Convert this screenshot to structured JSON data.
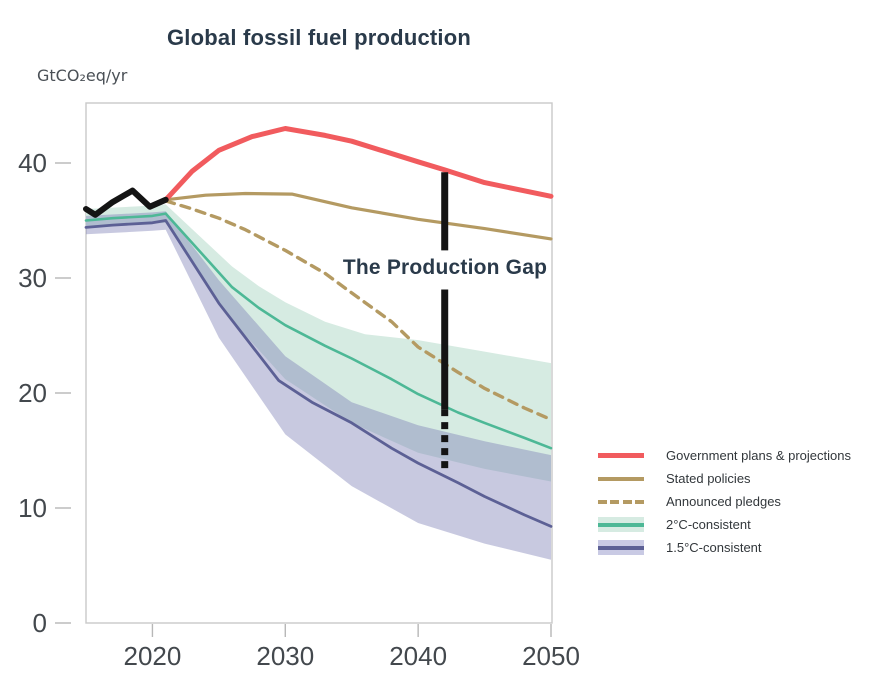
{
  "header": {
    "title": "Global fossil fuel production",
    "unit_label": "GtCO₂eq/yr"
  },
  "annotation": {
    "label": "The Production Gap"
  },
  "colors": {
    "government_plans": "#f15b5e",
    "stated_policies": "#b49a62",
    "announced_pledges": "#b49a62",
    "two_degree_line": "#4db896",
    "two_degree_band": "#d6ebe2",
    "one_five_degree_line": "#5c6095",
    "one_five_degree_band": "#c9cae4",
    "historical": "#141414",
    "axis_border": "#c9c9c9",
    "tick_text": "#43484d",
    "title_text": "#2a3a4a"
  },
  "legend": {
    "items": [
      {
        "id": "government-plans",
        "label": "Government plans & projections",
        "type": "thick-line",
        "color": "#f15b5e"
      },
      {
        "id": "stated-policies",
        "label": "Stated policies",
        "type": "line",
        "color": "#b49a62"
      },
      {
        "id": "announced-pledges",
        "label": "Announced pledges",
        "type": "dashed",
        "color": "#b49a62"
      },
      {
        "id": "two-degree",
        "label": "2°C-consistent",
        "type": "band",
        "color": "#4db896",
        "band_color": "#d6ebe2"
      },
      {
        "id": "one-five-degree",
        "label": "1.5°C-consistent",
        "type": "band",
        "color": "#5c6095",
        "band_color": "#c9cae4"
      }
    ]
  },
  "chart_data": {
    "type": "line",
    "title": "Global fossil fuel production",
    "xlabel": "",
    "ylabel": "GtCO₂eq/yr",
    "xlim": [
      2015,
      2050.2
    ],
    "ylim": [
      0,
      45.2
    ],
    "x_ticks": [
      2020,
      2030,
      2040,
      2050
    ],
    "y_ticks": [
      0,
      10,
      20,
      30,
      40
    ],
    "grid": false,
    "legend_position": "right",
    "bands": [
      {
        "id": "band-2c",
        "name": "2°C-consistent range",
        "fill": "#d6ebe2",
        "opacity": 1,
        "top": [
          [
            2015,
            36.0
          ],
          [
            2020,
            36.3
          ],
          [
            2021,
            36.4
          ],
          [
            2026,
            31.0
          ],
          [
            2028,
            29.3
          ],
          [
            2030,
            27.9
          ],
          [
            2033,
            26.2
          ],
          [
            2036,
            25.1
          ],
          [
            2040,
            24.6
          ],
          [
            2045,
            23.6
          ],
          [
            2050,
            22.6
          ]
        ],
        "bottom": [
          [
            2015,
            34.4
          ],
          [
            2020,
            34.7
          ],
          [
            2021,
            34.8
          ],
          [
            2026,
            26.3
          ],
          [
            2030,
            21.2
          ],
          [
            2035,
            17.4
          ],
          [
            2040,
            14.8
          ],
          [
            2045,
            13.4
          ],
          [
            2050,
            12.3
          ]
        ]
      },
      {
        "id": "band-15c",
        "name": "1.5°C-consistent range",
        "fill": "rgba(124,127,182,0.42)",
        "opacity": 1,
        "top": [
          [
            2015,
            35.4
          ],
          [
            2020,
            35.7
          ],
          [
            2021,
            35.8
          ],
          [
            2025,
            29.8
          ],
          [
            2030,
            23.2
          ],
          [
            2035,
            19.2
          ],
          [
            2040,
            17.2
          ],
          [
            2045,
            15.8
          ],
          [
            2050,
            14.6
          ]
        ],
        "bottom": [
          [
            2015,
            33.8
          ],
          [
            2020,
            34.1
          ],
          [
            2021,
            34.2
          ],
          [
            2025,
            24.8
          ],
          [
            2030,
            16.4
          ],
          [
            2035,
            11.9
          ],
          [
            2040,
            8.7
          ],
          [
            2045,
            6.9
          ],
          [
            2050,
            5.5
          ]
        ]
      }
    ],
    "series": [
      {
        "id": "line-2c",
        "name": "2°C-consistent",
        "color": "#4db896",
        "width": 2.6,
        "points": [
          [
            2015,
            35.0
          ],
          [
            2017,
            35.2
          ],
          [
            2020,
            35.4
          ],
          [
            2021,
            35.6
          ],
          [
            2026,
            29.2
          ],
          [
            2028,
            27.4
          ],
          [
            2030,
            25.9
          ],
          [
            2033,
            24.1
          ],
          [
            2035,
            23.0
          ],
          [
            2038,
            21.2
          ],
          [
            2040,
            19.9
          ],
          [
            2043,
            18.3
          ],
          [
            2045,
            17.4
          ],
          [
            2048,
            16.1
          ],
          [
            2050,
            15.2
          ]
        ]
      },
      {
        "id": "line-15c",
        "name": "1.5°C-consistent",
        "color": "#5c6095",
        "width": 2.8,
        "points": [
          [
            2015,
            34.4
          ],
          [
            2017,
            34.6
          ],
          [
            2020,
            34.8
          ],
          [
            2021,
            35.0
          ],
          [
            2025,
            27.8
          ],
          [
            2029.5,
            21.1
          ],
          [
            2032,
            19.2
          ],
          [
            2035,
            17.4
          ],
          [
            2038,
            15.2
          ],
          [
            2040,
            13.9
          ],
          [
            2043,
            12.2
          ],
          [
            2045,
            11.0
          ],
          [
            2048,
            9.4
          ],
          [
            2050,
            8.4
          ]
        ]
      },
      {
        "id": "line-pledges",
        "name": "Announced pledges",
        "color": "#b49a62",
        "width": 3.4,
        "dash": "9 7",
        "points": [
          [
            2021,
            36.7
          ],
          [
            2023,
            36.0
          ],
          [
            2025,
            35.2
          ],
          [
            2027,
            34.2
          ],
          [
            2030,
            32.4
          ],
          [
            2033,
            30.4
          ],
          [
            2035,
            28.7
          ],
          [
            2038,
            26.2
          ],
          [
            2040,
            24.0
          ],
          [
            2043,
            21.8
          ],
          [
            2045,
            20.4
          ],
          [
            2048,
            18.7
          ],
          [
            2050,
            17.7
          ]
        ]
      },
      {
        "id": "line-stated",
        "name": "Stated policies",
        "color": "#b49a62",
        "width": 3.2,
        "points": [
          [
            2021,
            36.8
          ],
          [
            2024,
            37.2
          ],
          [
            2027,
            37.35
          ],
          [
            2030.5,
            37.3
          ],
          [
            2035,
            36.1
          ],
          [
            2040,
            35.1
          ],
          [
            2045,
            34.3
          ],
          [
            2050,
            33.4
          ]
        ]
      },
      {
        "id": "line-govt",
        "name": "Government plans & projections",
        "color": "#f15b5e",
        "width": 5,
        "points": [
          [
            2021,
            36.8
          ],
          [
            2023,
            39.3
          ],
          [
            2025,
            41.1
          ],
          [
            2027.5,
            42.3
          ],
          [
            2030,
            43.0
          ],
          [
            2033,
            42.4
          ],
          [
            2035,
            41.9
          ],
          [
            2040,
            40.1
          ],
          [
            2042,
            39.4
          ],
          [
            2045,
            38.3
          ],
          [
            2050,
            37.1
          ]
        ]
      },
      {
        "id": "line-history",
        "name": "Historical production",
        "color": "#141414",
        "width": 6,
        "points": [
          [
            2015,
            36.0
          ],
          [
            2015.7,
            35.5
          ],
          [
            2017,
            36.6
          ],
          [
            2018.5,
            37.6
          ],
          [
            2019.8,
            36.2
          ],
          [
            2021,
            36.8
          ]
        ]
      }
    ],
    "gap_marker": {
      "x": 2042,
      "width": 7,
      "color": "#141414",
      "label": "The Production Gap",
      "top": 39.2,
      "label_gap_top": 32.4,
      "label_gap_bottom": 29.0,
      "solid_bottom": 18.6,
      "dashed_bottom": 13.0,
      "dash": "7 6"
    }
  }
}
